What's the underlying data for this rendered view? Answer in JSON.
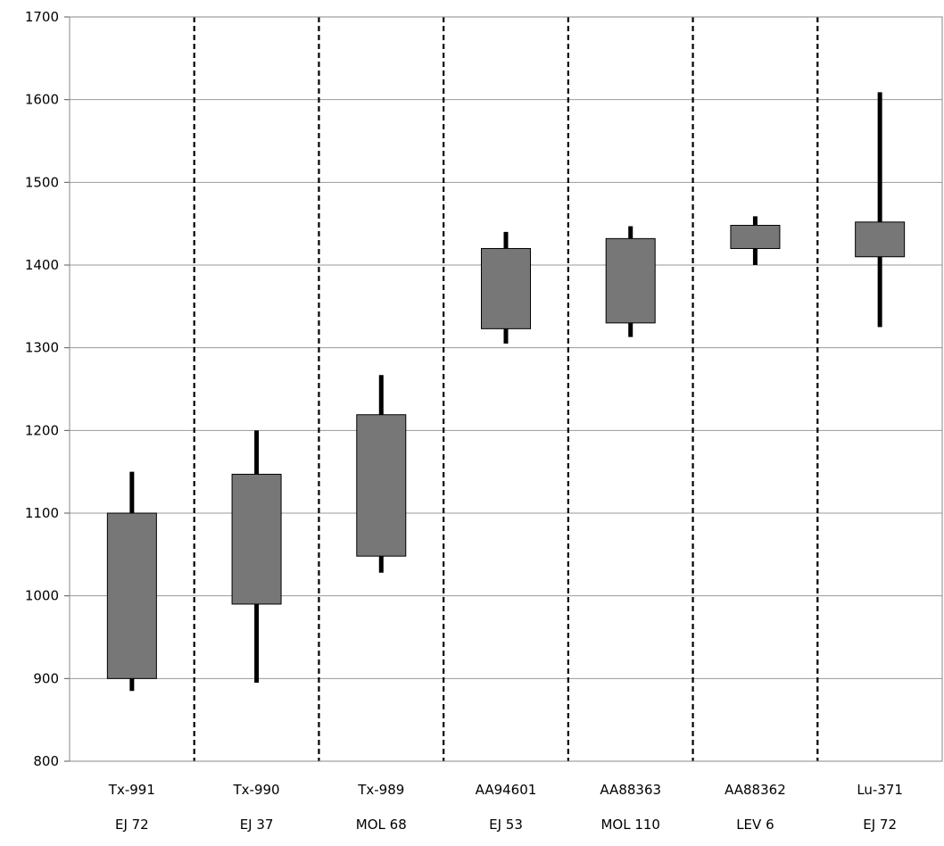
{
  "chart_data": {
    "type": "box",
    "yticks": [
      800,
      900,
      1000,
      1100,
      1200,
      1300,
      1400,
      1500,
      1600,
      1700
    ],
    "ylim": [
      800,
      1700
    ],
    "grid": true,
    "categories": [
      {
        "line1": "Tx-991",
        "line2": "EJ 72",
        "low": 885,
        "q1": 900,
        "q3": 1100,
        "high": 1150
      },
      {
        "line1": "Tx-990",
        "line2": "EJ 37",
        "low": 895,
        "q1": 990,
        "q3": 1147,
        "high": 1200
      },
      {
        "line1": "Tx-989",
        "line2": "MOL 68",
        "low": 1028,
        "q1": 1048,
        "q3": 1219,
        "high": 1267
      },
      {
        "line1": "AA94601",
        "line2": "EJ 53",
        "low": 1305,
        "q1": 1323,
        "q3": 1420,
        "high": 1440
      },
      {
        "line1": "AA88363",
        "line2": "MOL 110",
        "low": 1313,
        "q1": 1330,
        "q3": 1432,
        "high": 1447
      },
      {
        "line1": "AA88362",
        "line2": "LEV 6",
        "low": 1400,
        "q1": 1420,
        "q3": 1448,
        "high": 1459
      },
      {
        "line1": "Lu-371",
        "line2": "EJ 72",
        "low": 1325,
        "q1": 1410,
        "q3": 1452,
        "high": 1609
      }
    ],
    "box_color": "#777777"
  }
}
